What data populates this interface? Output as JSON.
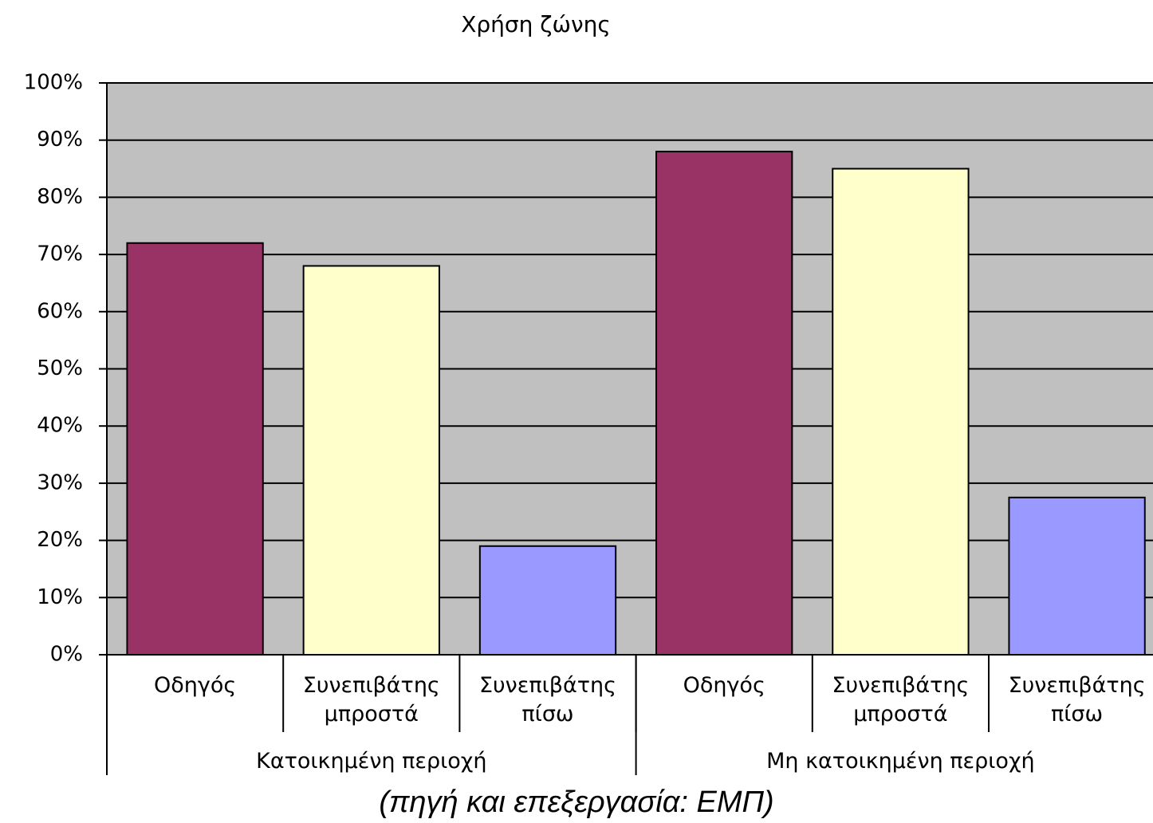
{
  "chart_data": {
    "type": "bar",
    "title": "Χρήση ζώνης",
    "categories": [
      "Οδηγός",
      "Συνεπιβάτης μπροστά",
      "Συνεπιβάτης πίσω",
      "Οδηγός",
      "Συνεπιβάτης μπροστά",
      "Συνεπιβάτης πίσω"
    ],
    "groups": [
      {
        "label": "Κατοικημένη περιοχή",
        "span": 3
      },
      {
        "label": "Μη κατοικημένη περιοχή",
        "span": 3
      }
    ],
    "values": [
      72,
      68,
      19,
      88,
      85,
      27.5
    ],
    "colors": [
      "#993366",
      "#ffffcc",
      "#9999ff",
      "#993366",
      "#ffffcc",
      "#9999ff"
    ],
    "ylim": [
      0,
      100
    ],
    "yticks": [
      {
        "value": 0,
        "label": "0%"
      },
      {
        "value": 10,
        "label": "10%"
      },
      {
        "value": 20,
        "label": "20%"
      },
      {
        "value": 30,
        "label": "30%"
      },
      {
        "value": 40,
        "label": "40%"
      },
      {
        "value": 50,
        "label": "50%"
      },
      {
        "value": 60,
        "label": "60%"
      },
      {
        "value": 70,
        "label": "70%"
      },
      {
        "value": 80,
        "label": "80%"
      },
      {
        "value": 90,
        "label": "90%"
      },
      {
        "value": 100,
        "label": "100%"
      }
    ],
    "grid": true,
    "plot_background": "#c0c0c0",
    "caption": "(πηγή και επεξεργασία: ΕΜΠ)"
  }
}
